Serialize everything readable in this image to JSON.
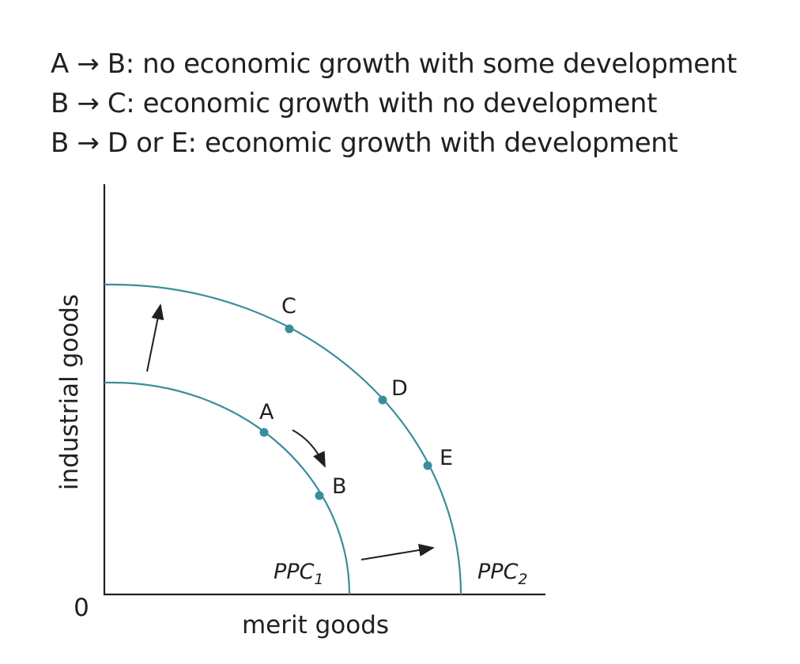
{
  "legend": [
    {
      "from": "A",
      "arrow": "→",
      "rest": "B: no economic growth with some development"
    },
    {
      "from": "B",
      "arrow": "→",
      "rest": "C: economic growth with no development"
    },
    {
      "from": "B",
      "arrow": "→",
      "rest": "D or E: economic growth with development"
    }
  ],
  "axes": {
    "y_label": "industrial goods",
    "x_label": "merit goods",
    "origin_label": "0"
  },
  "curves": {
    "ppc1": {
      "name": "PPC",
      "subscript": "1"
    },
    "ppc2": {
      "name": "PPC",
      "subscript": "2"
    }
  },
  "points": {
    "A": "A",
    "B": "B",
    "C": "C",
    "D": "D",
    "E": "E"
  },
  "colors": {
    "curve": "#3a8d9a",
    "text": "#231f20",
    "axis": "#231f20"
  }
}
